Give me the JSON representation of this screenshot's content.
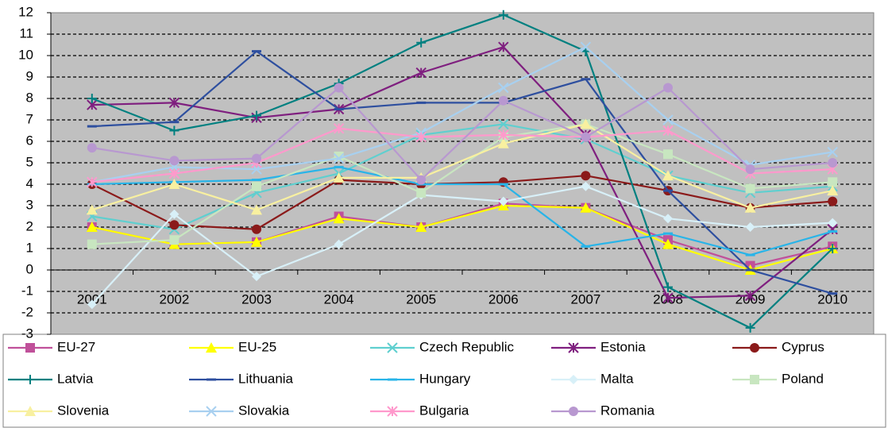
{
  "chart_data": {
    "type": "line",
    "categories": [
      "2001",
      "2002",
      "2003",
      "2004",
      "2005",
      "2006",
      "2007",
      "2008",
      "2009",
      "2010"
    ],
    "ylim": [
      -3,
      12
    ],
    "yticks": [
      -3,
      -2,
      -1,
      0,
      1,
      2,
      3,
      4,
      5,
      6,
      7,
      8,
      9,
      10,
      11,
      12
    ],
    "grid": true,
    "series": [
      {
        "name": "EU-27",
        "color": "#c0509a",
        "marker": "square",
        "values": [
          2.0,
          1.2,
          1.3,
          2.5,
          2.0,
          3.1,
          2.9,
          1.4,
          0.2,
          1.1
        ]
      },
      {
        "name": "EU-25",
        "color": "#ffff00",
        "marker": "triangle",
        "values": [
          2.0,
          1.2,
          1.3,
          2.4,
          2.0,
          3.0,
          2.9,
          1.2,
          0.0,
          1.0
        ]
      },
      {
        "name": "Czech Republic",
        "color": "#5fcfcf",
        "marker": "x",
        "values": [
          2.5,
          1.9,
          3.6,
          4.5,
          6.3,
          6.8,
          6.1,
          4.4,
          3.6,
          3.9
        ]
      },
      {
        "name": "Estonia",
        "color": "#7f1f7f",
        "marker": "star",
        "values": [
          7.7,
          7.8,
          7.1,
          7.5,
          9.2,
          10.4,
          6.3,
          -1.3,
          -1.2,
          1.9
        ]
      },
      {
        "name": "Cyprus",
        "color": "#8b1a1a",
        "marker": "circle",
        "values": [
          4.0,
          2.1,
          1.9,
          4.2,
          4.0,
          4.1,
          4.4,
          3.7,
          2.9,
          3.2
        ]
      },
      {
        "name": "Latvia",
        "color": "#008080",
        "marker": "plus",
        "values": [
          8.0,
          6.5,
          7.2,
          8.7,
          10.6,
          11.9,
          10.2,
          -0.8,
          -2.7,
          1.0
        ]
      },
      {
        "name": "Lithuania",
        "color": "#2e4f9f",
        "marker": "dash",
        "values": [
          6.7,
          6.9,
          10.2,
          7.5,
          7.8,
          7.8,
          8.9,
          3.7,
          0.0,
          -1.1
        ]
      },
      {
        "name": "Hungary",
        "color": "#28b4e8",
        "marker": "dash",
        "values": [
          4.0,
          4.1,
          4.2,
          4.8,
          4.0,
          4.0,
          1.1,
          1.7,
          0.7,
          1.8
        ]
      },
      {
        "name": "Malta",
        "color": "#d8f0f8",
        "marker": "diamond",
        "values": [
          -1.6,
          2.6,
          -0.3,
          1.2,
          3.5,
          3.2,
          3.9,
          2.4,
          2.0,
          2.2
        ]
      },
      {
        "name": "Poland",
        "color": "#c8e6c0",
        "marker": "square",
        "values": [
          1.2,
          1.4,
          3.9,
          5.3,
          3.6,
          6.2,
          6.8,
          5.4,
          3.8,
          4.1
        ]
      },
      {
        "name": "Slovenia",
        "color": "#f8f0a0",
        "marker": "triangle",
        "values": [
          2.8,
          4.0,
          2.8,
          4.3,
          4.3,
          5.9,
          6.8,
          4.4,
          2.9,
          3.7
        ]
      },
      {
        "name": "Slovakia",
        "color": "#a8d0f0",
        "marker": "x",
        "values": [
          4.1,
          4.8,
          4.7,
          5.2,
          6.4,
          8.5,
          10.4,
          7.0,
          4.9,
          5.5
        ]
      },
      {
        "name": "Bulgaria",
        "color": "#ff99cc",
        "marker": "star",
        "values": [
          4.1,
          4.5,
          5.0,
          6.6,
          6.2,
          6.3,
          6.2,
          6.5,
          4.5,
          4.7
        ]
      },
      {
        "name": "Romania",
        "color": "#b898d0",
        "marker": "circle",
        "values": [
          5.7,
          5.1,
          5.2,
          8.5,
          4.2,
          7.9,
          6.2,
          8.5,
          4.7,
          5.0
        ]
      }
    ]
  }
}
